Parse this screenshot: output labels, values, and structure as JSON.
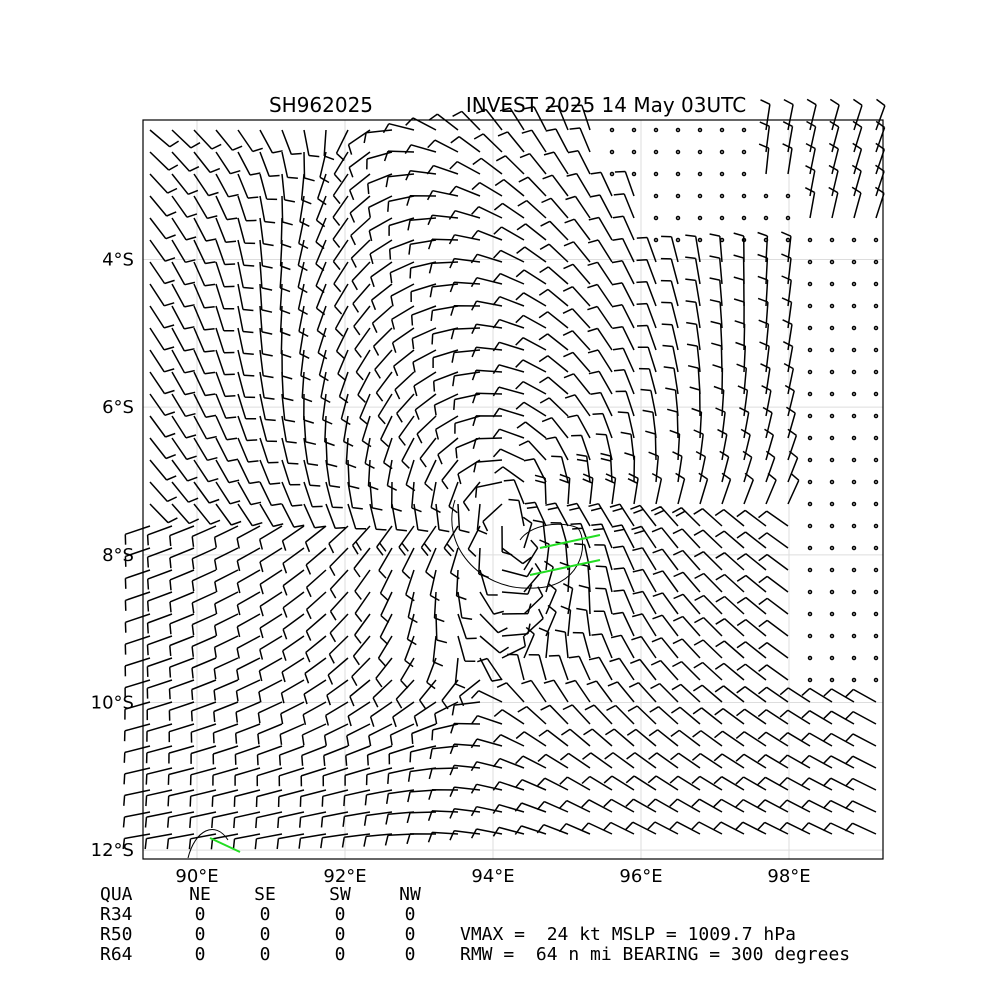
{
  "title_left": "SH962025",
  "title_right": "INVEST 2025 14 May 03UTC",
  "map": {
    "xlim": [
      89.27,
      99.27
    ],
    "ylim": [
      -2.11,
      -12.12
    ],
    "xticks": [
      {
        "value": 90,
        "label": "90°E"
      },
      {
        "value": 92,
        "label": "92°E"
      },
      {
        "value": 94,
        "label": "94°E"
      },
      {
        "value": 96,
        "label": "96°E"
      },
      {
        "value": 98,
        "label": "98°E"
      }
    ],
    "yticks": [
      {
        "value": -4,
        "label": "4°S"
      },
      {
        "value": -6,
        "label": "6°S"
      },
      {
        "value": -8,
        "label": "8°S"
      },
      {
        "value": -10,
        "label": "10°S"
      },
      {
        "value": -12,
        "label": "12°S"
      }
    ]
  },
  "table": {
    "header": [
      "QUA",
      "NE",
      "SE",
      "SW",
      "NW"
    ],
    "rows": [
      [
        "R34",
        0,
        0,
        0,
        0
      ],
      [
        "R50",
        0,
        0,
        0,
        0
      ],
      [
        "R64",
        0,
        0,
        0,
        0
      ]
    ]
  },
  "stats": [
    "VMAX =  24 kt MSLP = 1009.7 hPa",
    "RMW =  64 n mi BEARING = 300 degrees"
  ]
}
